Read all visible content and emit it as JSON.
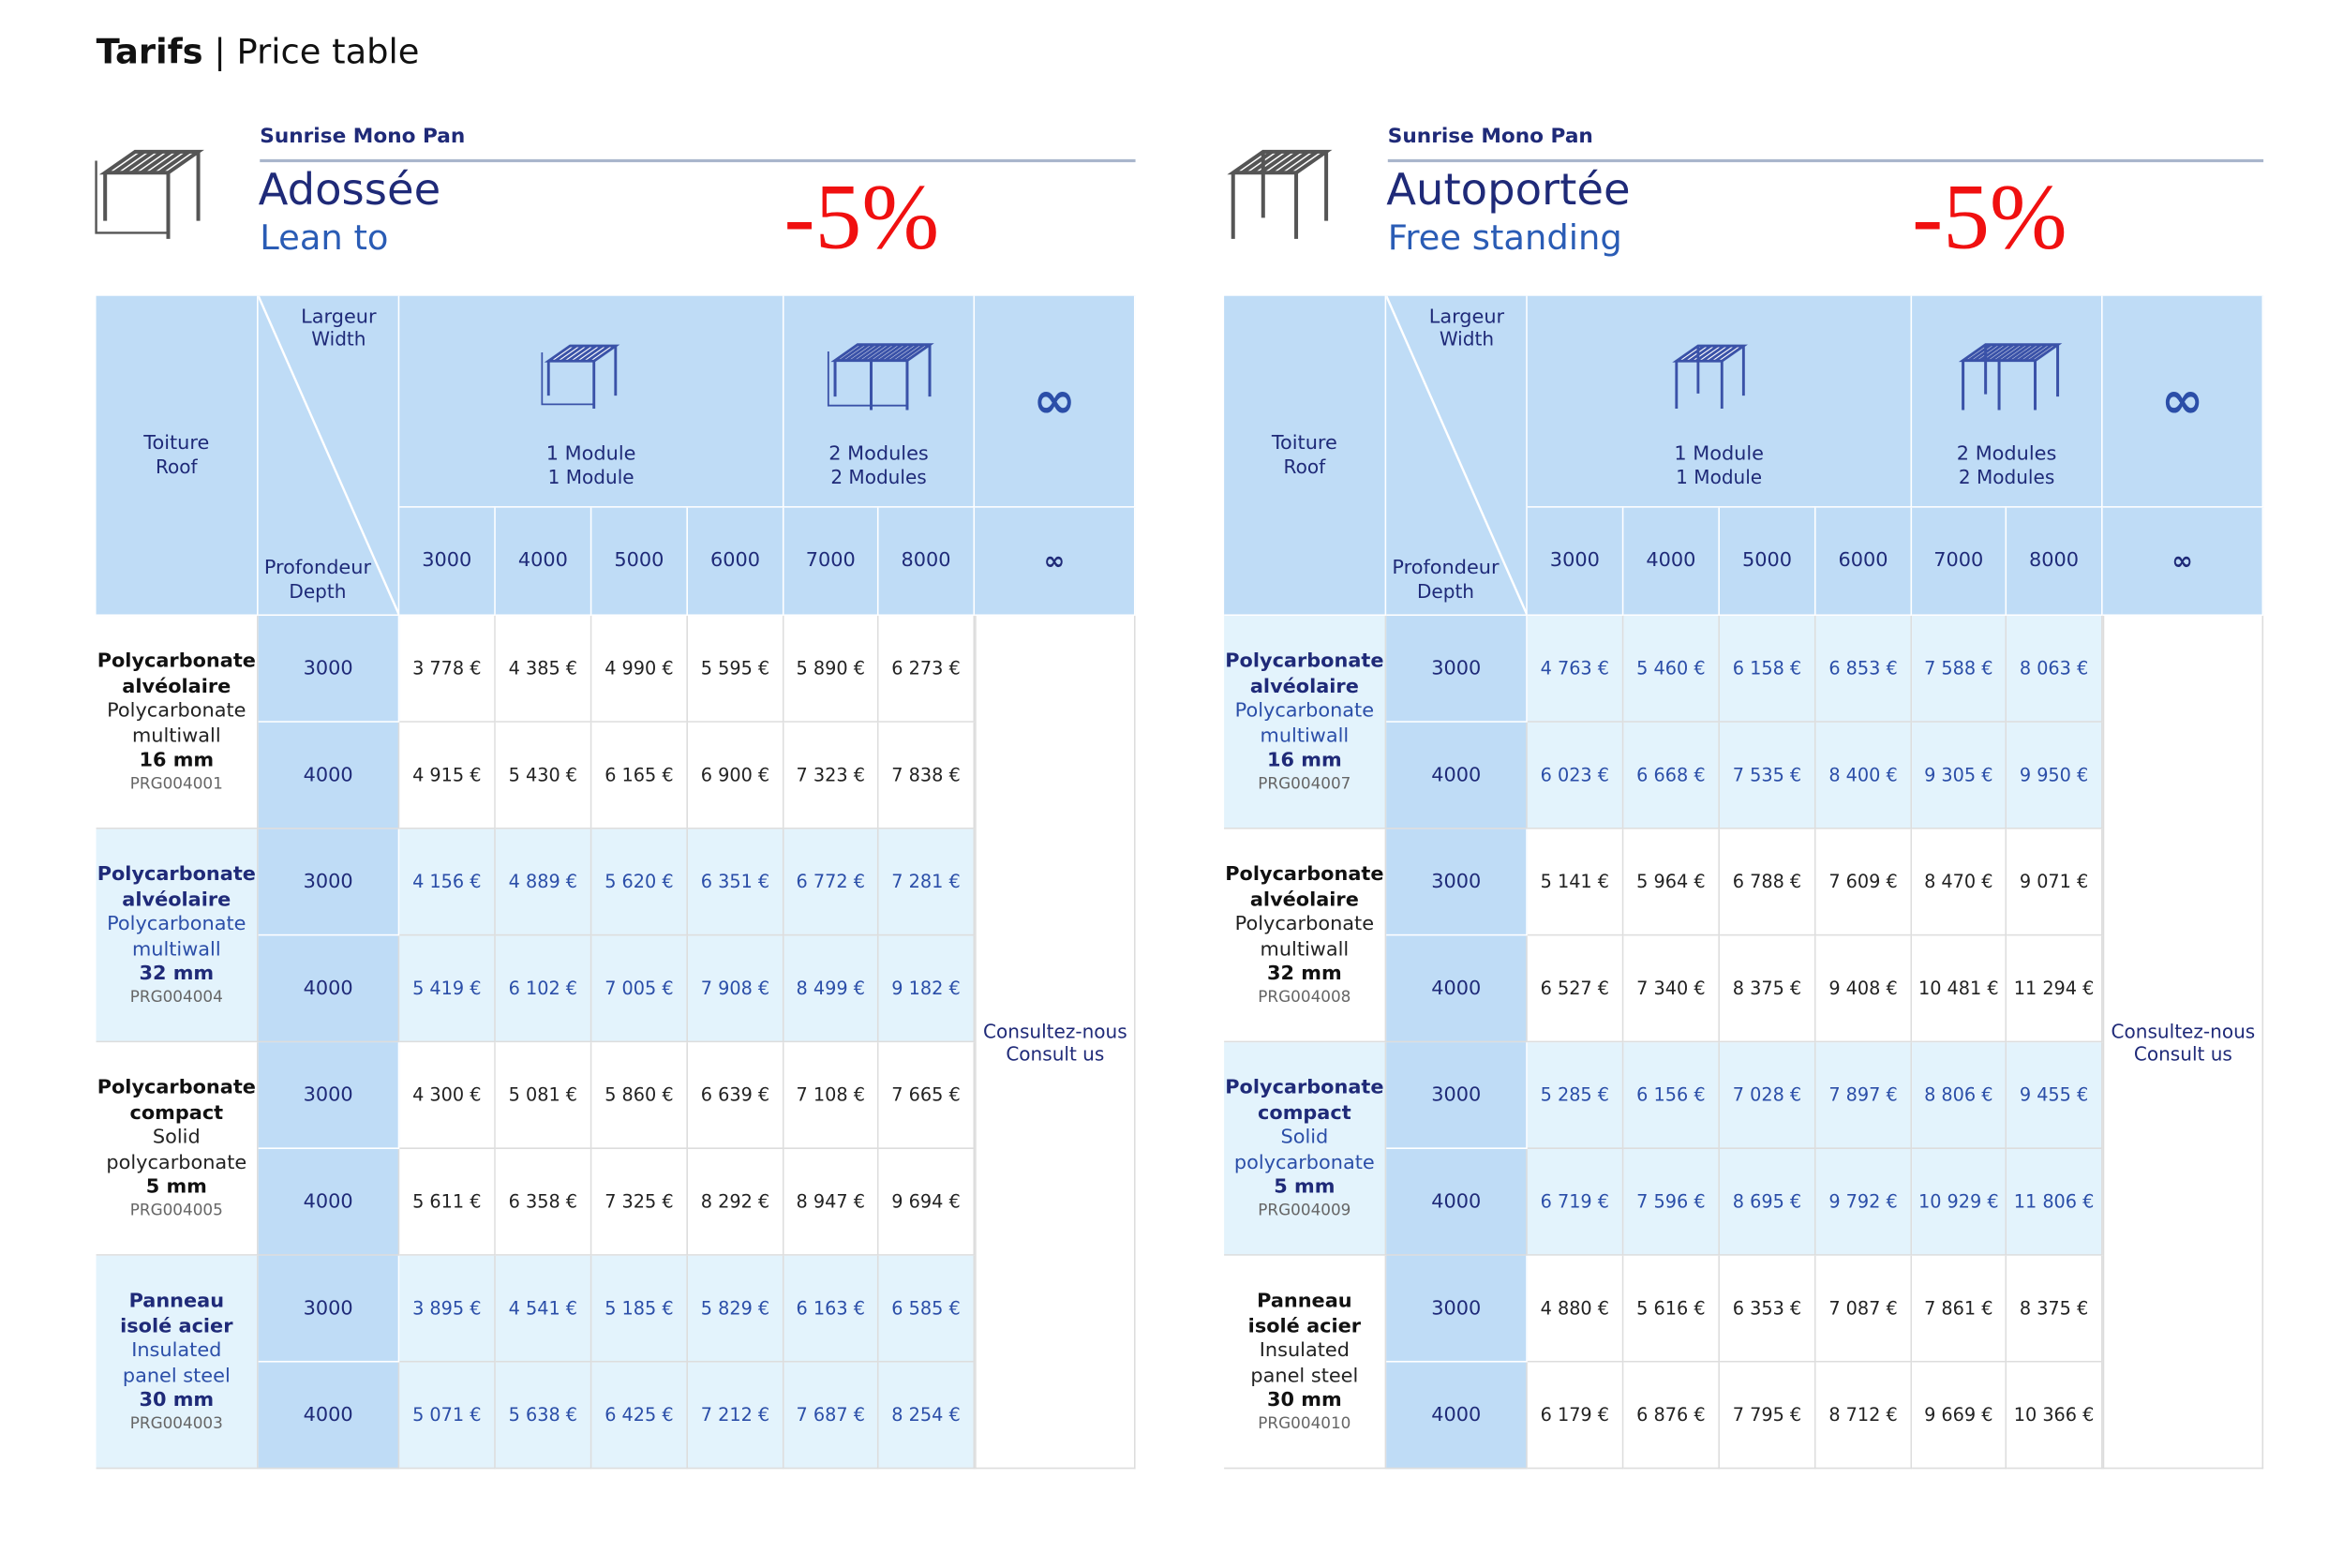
{
  "header": {
    "title": "Tarifs",
    "separator": "|",
    "subtitle": "Price table"
  },
  "tables": [
    {
      "brand": "Sunrise Mono Pan",
      "title_fr": "Adossée",
      "title_en": "Lean to",
      "discount": "-5%",
      "head": {
        "width_fr": "Largeur",
        "width_en": "Width",
        "depth_fr": "Profondeur",
        "depth_en": "Depth",
        "roof_fr": "Toiture",
        "roof_en": "Roof",
        "one_fr": "1 Module",
        "one_en": "1 Module",
        "two_fr": "2 Modules",
        "two_en": "2 Modules",
        "inf": "∞",
        "inf_small": "∞",
        "widths": [
          "3000",
          "4000",
          "5000",
          "6000",
          "7000",
          "8000"
        ]
      },
      "consult_fr": "Consultez-nous",
      "consult_en": "Consult us",
      "groups": [
        {
          "highlight": false,
          "name_fr": "Polycarbonate alvéolaire",
          "name_en": "Polycarbonate multiwall",
          "thickness": "16 mm",
          "code": "PRG004001",
          "depths": [
            "3000",
            "4000"
          ],
          "prices": [
            [
              "3 778 €",
              "4 385 €",
              "4 990 €",
              "5 595 €",
              "5 890 €",
              "6 273 €"
            ],
            [
              "4 915 €",
              "5 430 €",
              "6 165 €",
              "6 900 €",
              "7 323 €",
              "7 838 €"
            ]
          ]
        },
        {
          "highlight": true,
          "name_fr": "Polycarbonate alvéolaire",
          "name_en": "Polycarbonate multiwall",
          "thickness": "32 mm",
          "code": "PRG004004",
          "depths": [
            "3000",
            "4000"
          ],
          "prices": [
            [
              "4 156 €",
              "4 889 €",
              "5 620 €",
              "6 351 €",
              "6 772 €",
              "7 281 €"
            ],
            [
              "5 419 €",
              "6 102 €",
              "7 005 €",
              "7 908 €",
              "8 499 €",
              "9 182 €"
            ]
          ]
        },
        {
          "highlight": false,
          "name_fr": "Polycarbonate compact",
          "name_en": "Solid polycarbonate",
          "thickness": "5 mm",
          "code": "PRG004005",
          "depths": [
            "3000",
            "4000"
          ],
          "prices": [
            [
              "4 300 €",
              "5 081 €",
              "5 860 €",
              "6 639 €",
              "7 108 €",
              "7 665 €"
            ],
            [
              "5 611 €",
              "6 358 €",
              "7 325 €",
              "8 292 €",
              "8 947 €",
              "9 694 €"
            ]
          ]
        },
        {
          "highlight": true,
          "name_fr": "Panneau isolé acier",
          "name_en": "Insulated panel steel",
          "thickness": "30 mm",
          "code": "PRG004003",
          "depths": [
            "3000",
            "4000"
          ],
          "prices": [
            [
              "3 895 €",
              "4 541 €",
              "5 185 €",
              "5 829 €",
              "6 163 €",
              "6 585 €"
            ],
            [
              "5 071 €",
              "5 638 €",
              "6 425 €",
              "7 212 €",
              "7 687 €",
              "8 254 €"
            ]
          ]
        }
      ]
    },
    {
      "brand": "Sunrise Mono Pan",
      "title_fr": "Autoportée",
      "title_en": "Free standing",
      "discount": "-5%",
      "head": {
        "width_fr": "Largeur",
        "width_en": "Width",
        "depth_fr": "Profondeur",
        "depth_en": "Depth",
        "roof_fr": "Toiture",
        "roof_en": "Roof",
        "one_fr": "1 Module",
        "one_en": "1 Module",
        "two_fr": "2 Modules",
        "two_en": "2 Modules",
        "inf": "∞",
        "inf_small": "∞",
        "widths": [
          "3000",
          "4000",
          "5000",
          "6000",
          "7000",
          "8000"
        ]
      },
      "consult_fr": "Consultez-nous",
      "consult_en": "Consult us",
      "groups": [
        {
          "highlight": true,
          "name_fr": "Polycarbonate alvéolaire",
          "name_en": "Polycarbonate multiwall",
          "thickness": "16 mm",
          "code": "PRG004007",
          "depths": [
            "3000",
            "4000"
          ],
          "prices": [
            [
              "4 763 €",
              "5 460 €",
              "6 158 €",
              "6 853 €",
              "7 588 €",
              "8 063 €"
            ],
            [
              "6 023 €",
              "6 668 €",
              "7 535 €",
              "8 400 €",
              "9 305 €",
              "9 950 €"
            ]
          ]
        },
        {
          "highlight": false,
          "name_fr": "Polycarbonate alvéolaire",
          "name_en": "Polycarbonate multiwall",
          "thickness": "32 mm",
          "code": "PRG004008",
          "depths": [
            "3000",
            "4000"
          ],
          "prices": [
            [
              "5 141 €",
              "5 964 €",
              "6 788 €",
              "7 609 €",
              "8 470 €",
              "9 071 €"
            ],
            [
              "6 527 €",
              "7 340 €",
              "8 375 €",
              "9 408 €",
              "10 481 €",
              "11 294 €"
            ]
          ]
        },
        {
          "highlight": true,
          "name_fr": "Polycarbonate compact",
          "name_en": "Solid polycarbonate",
          "thickness": "5 mm",
          "code": "PRG004009",
          "depths": [
            "3000",
            "4000"
          ],
          "prices": [
            [
              "5 285 €",
              "6 156 €",
              "7 028 €",
              "7 897 €",
              "8 806 €",
              "9 455 €"
            ],
            [
              "6 719 €",
              "7 596 €",
              "8 695 €",
              "9 792 €",
              "10 929 €",
              "11 806 €"
            ]
          ]
        },
        {
          "highlight": false,
          "name_fr": "Panneau isolé acier",
          "name_en": "Insulated panel steel",
          "thickness": "30 mm",
          "code": "PRG004010",
          "depths": [
            "3000",
            "4000"
          ],
          "prices": [
            [
              "4 880 €",
              "5 616 €",
              "6 353 €",
              "7 087 €",
              "7 861 €",
              "8 375 €"
            ],
            [
              "6 179 €",
              "6 876 €",
              "7 795 €",
              "8 712 €",
              "9 669 €",
              "10 366 €"
            ]
          ]
        }
      ]
    }
  ]
}
